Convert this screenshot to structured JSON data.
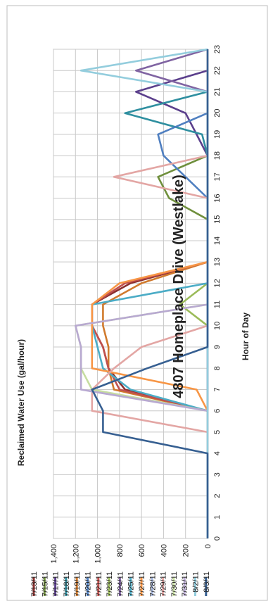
{
  "chart_data": {
    "type": "line",
    "title": "4807 Homeplace Drive (Westlake)",
    "xlabel": "Hour of Day",
    "ylabel": "Reclaimed Water Use (gal/hour)",
    "x": [
      0,
      1,
      2,
      3,
      4,
      5,
      6,
      7,
      8,
      9,
      10,
      11,
      12,
      13,
      14,
      15,
      16,
      17,
      18,
      19,
      20,
      21,
      22,
      23
    ],
    "x_tick_labels": [
      "0",
      "1",
      "2",
      "3",
      "4",
      "5",
      "6",
      "7",
      "8",
      "9",
      "10",
      "11",
      "12",
      "13",
      "14",
      "15",
      "16",
      "17",
      "18",
      "19",
      "20",
      "21",
      "22",
      "23"
    ],
    "ylim": [
      0,
      1400
    ],
    "y_tick_labels": [
      "0",
      "200",
      "400",
      "600",
      "800",
      "1,000",
      "1,200",
      "1,400"
    ],
    "grid": true,
    "orientation": "rotated-90-ccw",
    "legend_position": "right",
    "series": [
      {
        "name": "7/13/11",
        "color": "#8B2F2D",
        "values": [
          0,
          0,
          0,
          0,
          0,
          0,
          0,
          750,
          900,
          950,
          1050,
          1050,
          700,
          0,
          0,
          0,
          0,
          0,
          0,
          0,
          0,
          0,
          0,
          0
        ]
      },
      {
        "name": "7/15/11",
        "color": "#6F8F3C",
        "values": [
          0,
          0,
          0,
          0,
          0,
          0,
          0,
          0,
          0,
          0,
          0,
          0,
          0,
          0,
          0,
          0,
          350,
          450,
          0,
          0,
          0,
          0,
          0,
          0
        ]
      },
      {
        "name": "7/17/11",
        "color": "#5B3F8C",
        "values": [
          0,
          0,
          0,
          0,
          0,
          0,
          0,
          0,
          0,
          0,
          0,
          0,
          0,
          0,
          0,
          0,
          0,
          0,
          0,
          100,
          200,
          650,
          0,
          0
        ]
      },
      {
        "name": "7/18/11",
        "color": "#2F8FA0",
        "values": [
          0,
          0,
          0,
          0,
          0,
          0,
          0,
          0,
          0,
          0,
          0,
          0,
          0,
          0,
          0,
          0,
          0,
          0,
          0,
          50,
          750,
          0,
          0,
          0
        ]
      },
      {
        "name": "7/19/11",
        "color": "#D07A2D",
        "values": [
          0,
          0,
          0,
          0,
          0,
          0,
          0,
          850,
          900,
          900,
          950,
          950,
          600,
          0,
          0,
          0,
          0,
          0,
          0,
          0,
          0,
          0,
          0,
          0
        ]
      },
      {
        "name": "7/20/11",
        "color": "#4F7FC0",
        "values": [
          0,
          0,
          0,
          0,
          0,
          0,
          0,
          0,
          0,
          0,
          0,
          0,
          0,
          0,
          0,
          0,
          0,
          200,
          400,
          450,
          0,
          0,
          0,
          0
        ]
      },
      {
        "name": "7/21/11",
        "color": "#C0504D",
        "values": [
          0,
          0,
          0,
          0,
          0,
          0,
          0,
          800,
          900,
          950,
          1050,
          1050,
          750,
          0,
          0,
          0,
          0,
          0,
          0,
          0,
          0,
          0,
          0,
          0
        ]
      },
      {
        "name": "7/23/11",
        "color": "#9BBB59",
        "values": [
          0,
          0,
          0,
          0,
          0,
          0,
          0,
          0,
          0,
          0,
          0,
          250,
          0,
          0,
          0,
          0,
          0,
          0,
          0,
          0,
          0,
          0,
          0,
          0
        ]
      },
      {
        "name": "7/24/11",
        "color": "#8064A2",
        "values": [
          0,
          0,
          0,
          0,
          0,
          0,
          0,
          0,
          0,
          0,
          0,
          0,
          0,
          0,
          0,
          0,
          0,
          0,
          0,
          0,
          0,
          0,
          650,
          0
        ]
      },
      {
        "name": "7/25/11",
        "color": "#4BACC6",
        "values": [
          0,
          0,
          0,
          0,
          0,
          0,
          0,
          700,
          950,
          1000,
          1050,
          1050,
          0,
          0,
          0,
          0,
          0,
          0,
          0,
          0,
          0,
          0,
          0,
          0
        ]
      },
      {
        "name": "7/27/11",
        "color": "#F79646",
        "values": [
          0,
          0,
          0,
          0,
          0,
          0,
          0,
          100,
          1050,
          1050,
          1050,
          1050,
          800,
          0,
          0,
          0,
          0,
          0,
          0,
          0,
          0,
          0,
          0,
          0
        ]
      },
      {
        "name": "7/28/11",
        "color": "#A5B5DA",
        "values": [
          0,
          0,
          0,
          0,
          0,
          0,
          0,
          0,
          0,
          0,
          0,
          0,
          0,
          0,
          0,
          0,
          0,
          0,
          0,
          0,
          0,
          0,
          0,
          0
        ]
      },
      {
        "name": "7/29/11",
        "color": "#E3A6A4",
        "values": [
          0,
          0,
          0,
          0,
          0,
          0,
          1050,
          1050,
          850,
          600,
          0,
          0,
          0,
          0,
          0,
          0,
          0,
          850,
          0,
          0,
          0,
          0,
          0,
          0
        ]
      },
      {
        "name": "7/30/11",
        "color": "#C6DDA0",
        "values": [
          0,
          0,
          0,
          0,
          0,
          0,
          0,
          1050,
          1150,
          1150,
          1200,
          0,
          0,
          0,
          0,
          0,
          0,
          0,
          0,
          0,
          0,
          0,
          0,
          0
        ]
      },
      {
        "name": "7/31/11",
        "color": "#B8A9D1",
        "values": [
          0,
          0,
          0,
          0,
          0,
          0,
          0,
          1150,
          1150,
          1150,
          1200,
          0,
          0,
          0,
          0,
          0,
          0,
          0,
          0,
          0,
          0,
          0,
          0,
          0
        ]
      },
      {
        "name": "8/2/11",
        "color": "#93CDDD",
        "values": [
          0,
          0,
          0,
          0,
          0,
          0,
          0,
          0,
          0,
          0,
          0,
          0,
          0,
          0,
          0,
          0,
          0,
          0,
          0,
          0,
          0,
          0,
          1150,
          0
        ]
      },
      {
        "name": "8/3/11",
        "color": "#365F91",
        "values": [
          0,
          0,
          0,
          0,
          0,
          950,
          950,
          1050,
          550,
          0,
          0,
          0,
          0,
          0,
          0,
          0,
          0,
          0,
          0,
          0,
          0,
          0,
          0,
          0
        ]
      }
    ]
  }
}
